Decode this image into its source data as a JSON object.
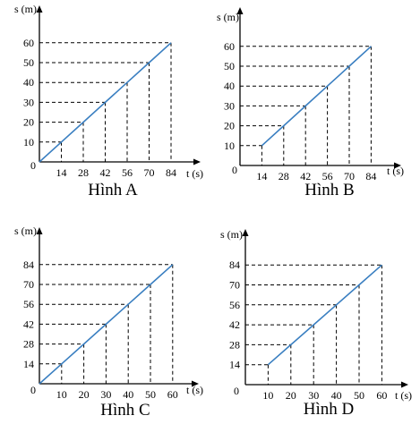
{
  "chart_data": [
    {
      "type": "line",
      "title": "Hình A",
      "ylabel": "s (m)",
      "xlabel": "t (s)",
      "origin_label": "0",
      "x_ticks": [
        14,
        28,
        42,
        56,
        70,
        84
      ],
      "y_ticks": [
        10,
        20,
        30,
        40,
        50,
        60
      ],
      "xlim": [
        0,
        84
      ],
      "ylim": [
        0,
        60
      ],
      "series": [
        {
          "x": [
            0,
            14,
            28,
            42,
            56,
            70,
            84
          ],
          "y": [
            0,
            10,
            20,
            30,
            40,
            50,
            60
          ]
        }
      ],
      "line_color": "#3a7fc1"
    },
    {
      "type": "line",
      "title": "Hình B",
      "ylabel": "s (m)",
      "xlabel": "t (s)",
      "origin_label": "0",
      "x_ticks": [
        14,
        28,
        42,
        56,
        70,
        84
      ],
      "y_ticks": [
        10,
        20,
        30,
        40,
        50,
        60
      ],
      "xlim": [
        0,
        84
      ],
      "ylim": [
        0,
        60
      ],
      "series": [
        {
          "x": [
            14,
            28,
            42,
            56,
            70,
            84
          ],
          "y": [
            10,
            20,
            30,
            40,
            50,
            60
          ]
        }
      ],
      "line_color": "#3a7fc1"
    },
    {
      "type": "line",
      "title": "Hình C",
      "ylabel": "s (m)",
      "xlabel": "t (s)",
      "origin_label": "0",
      "x_ticks": [
        10,
        20,
        30,
        40,
        50,
        60
      ],
      "y_ticks": [
        14,
        28,
        42,
        56,
        70,
        84
      ],
      "xlim": [
        0,
        60
      ],
      "ylim": [
        0,
        84
      ],
      "series": [
        {
          "x": [
            0,
            10,
            20,
            30,
            40,
            50,
            60
          ],
          "y": [
            0,
            14,
            28,
            42,
            56,
            70,
            84
          ]
        }
      ],
      "line_color": "#3a7fc1"
    },
    {
      "type": "line",
      "title": "Hình D",
      "ylabel": "s (m)",
      "xlabel": "t (s)",
      "origin_label": "0",
      "x_ticks": [
        10,
        20,
        30,
        40,
        50,
        60
      ],
      "y_ticks": [
        14,
        28,
        42,
        56,
        70,
        84
      ],
      "xlim": [
        0,
        60
      ],
      "ylim": [
        0,
        84
      ],
      "series": [
        {
          "x": [
            10,
            20,
            30,
            40,
            50,
            60
          ],
          "y": [
            14,
            28,
            42,
            56,
            70,
            84
          ]
        }
      ],
      "line_color": "#3a7fc1"
    }
  ]
}
